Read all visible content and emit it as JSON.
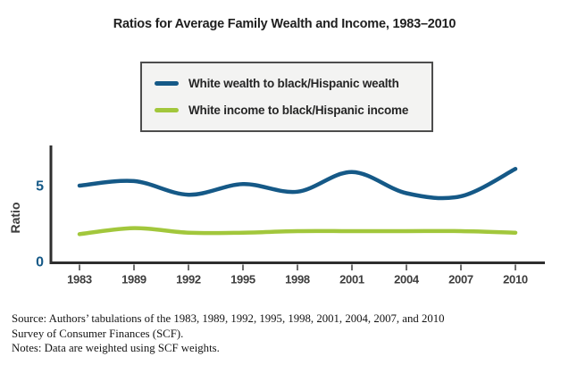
{
  "title": "Ratios for Average Family Wealth and Income, 1983–2010",
  "legend": {
    "items": [
      {
        "label": "White wealth to black/Hispanic wealth",
        "color": "#155987"
      },
      {
        "label": "White income to black/Hispanic income",
        "color": "#a2c73c"
      }
    ]
  },
  "chart_data": {
    "type": "line",
    "categories": [
      "1983",
      "1989",
      "1992",
      "1995",
      "1998",
      "2001",
      "2004",
      "2007",
      "2010"
    ],
    "series": [
      {
        "name": "White wealth to black/Hispanic wealth",
        "color": "#155987",
        "values": [
          5.0,
          5.3,
          4.4,
          5.1,
          4.6,
          5.9,
          4.5,
          4.3,
          6.1
        ]
      },
      {
        "name": "White income to black/Hispanic income",
        "color": "#a2c73c",
        "values": [
          1.8,
          2.2,
          1.9,
          1.9,
          2.0,
          2.0,
          2.0,
          2.0,
          1.9
        ]
      }
    ],
    "title": "Ratios for Average Family Wealth and Income, 1983–2010",
    "xlabel": "",
    "ylabel": "Ratio",
    "ylim": [
      0,
      7.7
    ],
    "yticks": [
      0,
      5
    ],
    "grid": false,
    "legend_position": "top",
    "line_smoothing": true
  },
  "axis_colors": {
    "axis_line": "#2e2e2e",
    "tick_mark": "#4a4a4a",
    "x_tick_label": "#3d3d3d",
    "y_tick_label": "#155987",
    "y_axis_title": "#3d3d3d"
  },
  "notes": {
    "line1": "Source: Authors’ tabulations of the 1983, 1989, 1992, 1995, 1998, 2001, 2004, 2007, and 2010",
    "line2": "Survey of Consumer Finances (SCF).",
    "line3": "Notes: Data are weighted using SCF weights."
  }
}
